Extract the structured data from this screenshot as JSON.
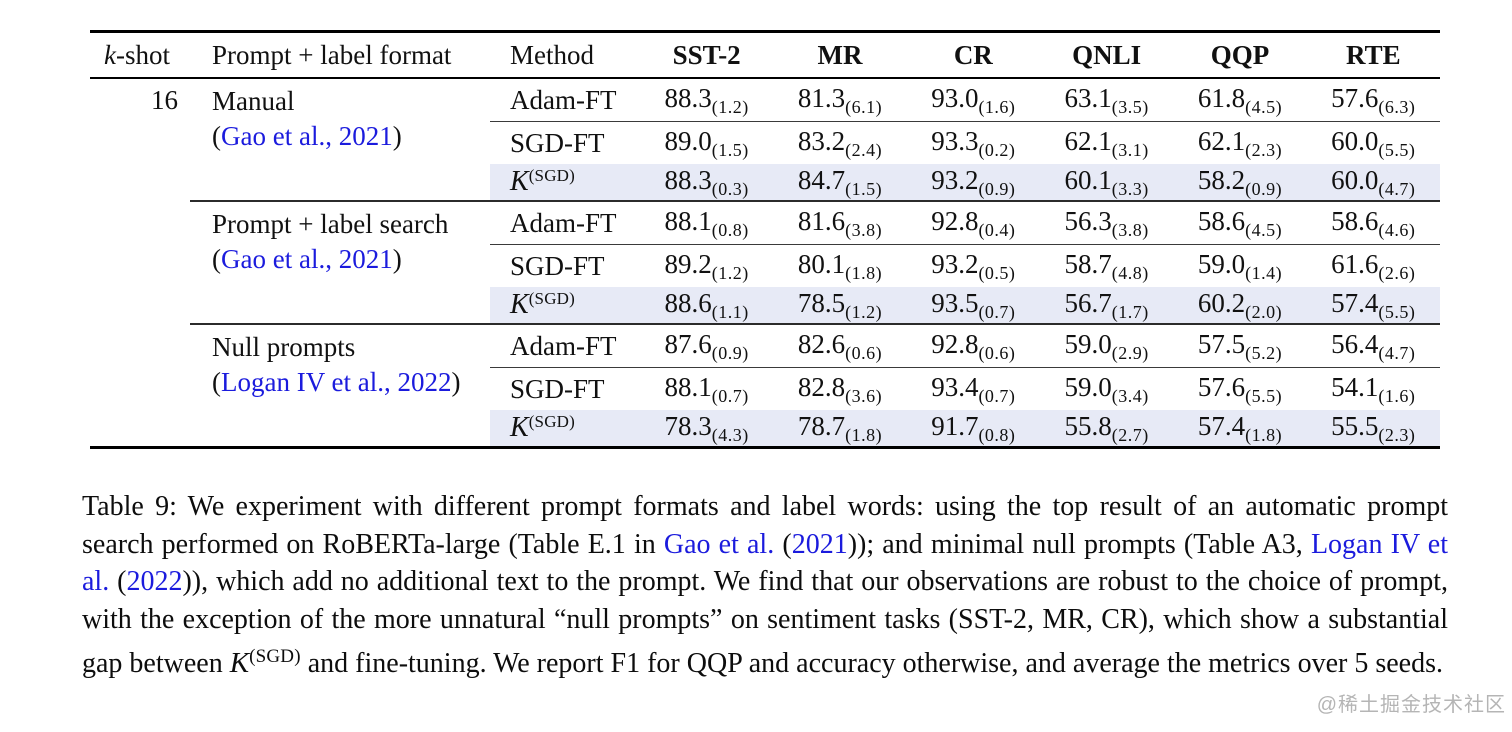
{
  "page": {
    "watermark": "@稀土掘金技术社区"
  },
  "table": {
    "headers": {
      "kshot_italic": "k",
      "kshot_rest": "-shot",
      "prompt": "Prompt + label format",
      "method": "Method",
      "datasets": [
        "SST-2",
        "MR",
        "CR",
        "QNLI",
        "QQP",
        "RTE"
      ]
    },
    "kernel_label": {
      "main": "K",
      "sup": "(SGD)"
    },
    "groups": [
      {
        "kshot": "16",
        "prompt_line1": "Manual",
        "cite_open": "(",
        "cite_text": "Gao et al., 2021",
        "cite_close": ")",
        "rows": [
          {
            "method": "Adam-FT",
            "kernel": false,
            "highlight": false,
            "values": [
              [
                "88.3",
                "(1.2)"
              ],
              [
                "81.3",
                "(6.1)"
              ],
              [
                "93.0",
                "(1.6)"
              ],
              [
                "63.1",
                "(3.5)"
              ],
              [
                "61.8",
                "(4.5)"
              ],
              [
                "57.6",
                "(6.3)"
              ]
            ]
          },
          {
            "method": "SGD-FT",
            "kernel": false,
            "highlight": false,
            "values": [
              [
                "89.0",
                "(1.5)"
              ],
              [
                "83.2",
                "(2.4)"
              ],
              [
                "93.3",
                "(0.2)"
              ],
              [
                "62.1",
                "(3.1)"
              ],
              [
                "62.1",
                "(2.3)"
              ],
              [
                "60.0",
                "(5.5)"
              ]
            ]
          },
          {
            "method": "K(SGD)",
            "kernel": true,
            "highlight": true,
            "values": [
              [
                "88.3",
                "(0.3)"
              ],
              [
                "84.7",
                "(1.5)"
              ],
              [
                "93.2",
                "(0.9)"
              ],
              [
                "60.1",
                "(3.3)"
              ],
              [
                "58.2",
                "(0.9)"
              ],
              [
                "60.0",
                "(4.7)"
              ]
            ]
          }
        ]
      },
      {
        "kshot": "",
        "prompt_line1": "Prompt + label search",
        "cite_open": "(",
        "cite_text": "Gao et al., 2021",
        "cite_close": ")",
        "rows": [
          {
            "method": "Adam-FT",
            "kernel": false,
            "highlight": false,
            "values": [
              [
                "88.1",
                "(0.8)"
              ],
              [
                "81.6",
                "(3.8)"
              ],
              [
                "92.8",
                "(0.4)"
              ],
              [
                "56.3",
                "(3.8)"
              ],
              [
                "58.6",
                "(4.5)"
              ],
              [
                "58.6",
                "(4.6)"
              ]
            ]
          },
          {
            "method": "SGD-FT",
            "kernel": false,
            "highlight": false,
            "values": [
              [
                "89.2",
                "(1.2)"
              ],
              [
                "80.1",
                "(1.8)"
              ],
              [
                "93.2",
                "(0.5)"
              ],
              [
                "58.7",
                "(4.8)"
              ],
              [
                "59.0",
                "(1.4)"
              ],
              [
                "61.6",
                "(2.6)"
              ]
            ]
          },
          {
            "method": "K(SGD)",
            "kernel": true,
            "highlight": true,
            "values": [
              [
                "88.6",
                "(1.1)"
              ],
              [
                "78.5",
                "(1.2)"
              ],
              [
                "93.5",
                "(0.7)"
              ],
              [
                "56.7",
                "(1.7)"
              ],
              [
                "60.2",
                "(2.0)"
              ],
              [
                "57.4",
                "(5.5)"
              ]
            ]
          }
        ]
      },
      {
        "kshot": "",
        "prompt_line1": "Null prompts",
        "cite_open": "(",
        "cite_text": "Logan IV et al., 2022",
        "cite_close": ")",
        "rows": [
          {
            "method": "Adam-FT",
            "kernel": false,
            "highlight": false,
            "values": [
              [
                "87.6",
                "(0.9)"
              ],
              [
                "82.6",
                "(0.6)"
              ],
              [
                "92.8",
                "(0.6)"
              ],
              [
                "59.0",
                "(2.9)"
              ],
              [
                "57.5",
                "(5.2)"
              ],
              [
                "56.4",
                "(4.7)"
              ]
            ]
          },
          {
            "method": "SGD-FT",
            "kernel": false,
            "highlight": false,
            "values": [
              [
                "88.1",
                "(0.7)"
              ],
              [
                "82.8",
                "(3.6)"
              ],
              [
                "93.4",
                "(0.7)"
              ],
              [
                "59.0",
                "(3.4)"
              ],
              [
                "57.6",
                "(5.5)"
              ],
              [
                "54.1",
                "(1.6)"
              ]
            ]
          },
          {
            "method": "K(SGD)",
            "kernel": true,
            "highlight": true,
            "values": [
              [
                "78.3",
                "(4.3)"
              ],
              [
                "78.7",
                "(1.8)"
              ],
              [
                "91.7",
                "(0.8)"
              ],
              [
                "55.8",
                "(2.7)"
              ],
              [
                "57.4",
                "(1.8)"
              ],
              [
                "55.5",
                "(2.3)"
              ]
            ]
          }
        ]
      }
    ]
  },
  "caption": {
    "segments": [
      {
        "t": "Table 9: We experiment with different prompt formats and label words: using the top result of an automatic prompt search performed on RoBERTa-large (Table E.1 in ",
        "y": "n"
      },
      {
        "t": "Gao et al.",
        "y": "l"
      },
      {
        "t": " (",
        "y": "n"
      },
      {
        "t": "2021",
        "y": "l"
      },
      {
        "t": ")); and minimal null prompts (Table A3, ",
        "y": "n"
      },
      {
        "t": "Logan IV et al.",
        "y": "l"
      },
      {
        "t": " (",
        "y": "n"
      },
      {
        "t": "2022",
        "y": "l"
      },
      {
        "t": ")), which add no additional text to the prompt. We find that our observations are robust to the choice of prompt, with the exception of the more unnatural “null prompts” on sentiment tasks (SST-2, MR, CR), which show a substantial gap between ",
        "y": "n"
      },
      {
        "t": "K",
        "sup": "(SGD)",
        "y": "k"
      },
      {
        "t": " and fine-tuning. We report F1 for QQP and accuracy otherwise, and average the metrics over 5 seeds.",
        "y": "n"
      }
    ]
  }
}
